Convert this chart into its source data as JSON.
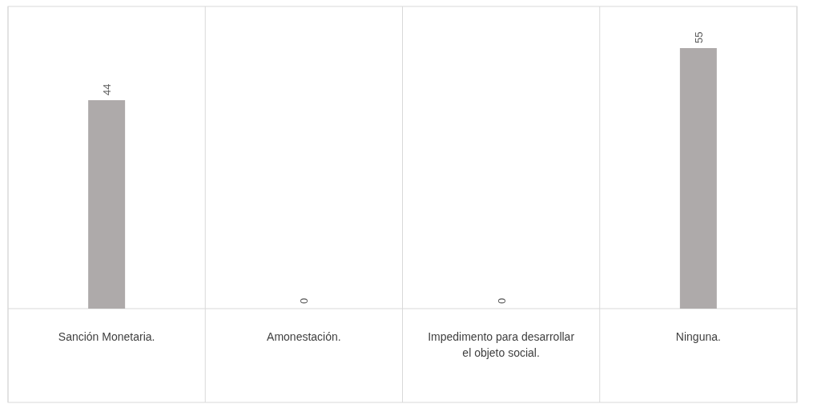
{
  "chart_data": {
    "type": "bar",
    "categories": [
      "Sanción Monetaria.",
      "Amonestación.",
      "Impedimento para desarrollar el objeto social.",
      "Ninguna."
    ],
    "values": [
      44,
      0,
      0,
      55
    ],
    "color": "#aeaaaa",
    "data_labels": true,
    "grid": "x"
  }
}
